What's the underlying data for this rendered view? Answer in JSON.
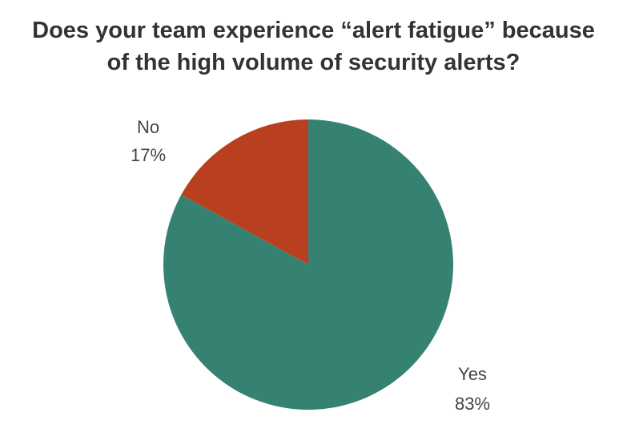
{
  "chart_data": {
    "type": "pie",
    "title": "Does your team experience “alert fatigue” because of the high volume of security alerts?",
    "categories": [
      "Yes",
      "No"
    ],
    "values": [
      83,
      17
    ],
    "value_labels": [
      "83%",
      "17%"
    ],
    "colors": [
      "#368272",
      "#b9401f"
    ]
  }
}
